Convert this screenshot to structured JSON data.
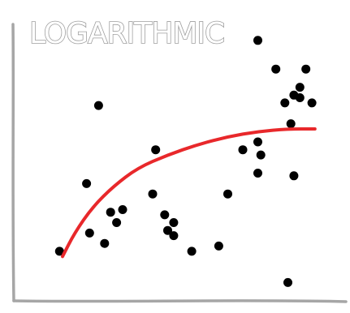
{
  "chart_data": {
    "type": "scatter",
    "title": "LOGARITHMIC",
    "xlabel": "",
    "ylabel": "",
    "xlim": [
      0,
      100
    ],
    "ylim": [
      0,
      100
    ],
    "grid": false,
    "legend": "none",
    "points": [
      {
        "x": 9,
        "y": 15
      },
      {
        "x": 18,
        "y": 41
      },
      {
        "x": 19,
        "y": 22
      },
      {
        "x": 22,
        "y": 71
      },
      {
        "x": 24,
        "y": 18
      },
      {
        "x": 26,
        "y": 30
      },
      {
        "x": 28,
        "y": 26
      },
      {
        "x": 30,
        "y": 31
      },
      {
        "x": 40,
        "y": 37
      },
      {
        "x": 41,
        "y": 54
      },
      {
        "x": 44,
        "y": 29
      },
      {
        "x": 45,
        "y": 23
      },
      {
        "x": 47,
        "y": 26
      },
      {
        "x": 47,
        "y": 21
      },
      {
        "x": 53,
        "y": 15
      },
      {
        "x": 62,
        "y": 17
      },
      {
        "x": 65,
        "y": 37
      },
      {
        "x": 70,
        "y": 54
      },
      {
        "x": 75,
        "y": 57
      },
      {
        "x": 75,
        "y": 45
      },
      {
        "x": 76,
        "y": 52
      },
      {
        "x": 75,
        "y": 96
      },
      {
        "x": 81,
        "y": 85
      },
      {
        "x": 84,
        "y": 72
      },
      {
        "x": 87,
        "y": 75
      },
      {
        "x": 87,
        "y": 44
      },
      {
        "x": 86,
        "y": 64
      },
      {
        "x": 89,
        "y": 74
      },
      {
        "x": 89,
        "y": 78
      },
      {
        "x": 91,
        "y": 85
      },
      {
        "x": 93,
        "y": 72
      },
      {
        "x": 85,
        "y": 3
      }
    ],
    "trend": {
      "type": "logarithmic",
      "color": "#e8282b",
      "x": [
        10,
        14,
        20,
        27,
        35,
        45,
        55,
        65,
        75,
        85,
        94
      ],
      "y": [
        13,
        22,
        32,
        40,
        47,
        52,
        56,
        59,
        61,
        62,
        62
      ]
    },
    "colors": {
      "points": "#000000",
      "axis": "#a6a6a6",
      "title": "#9e9e9e"
    }
  }
}
